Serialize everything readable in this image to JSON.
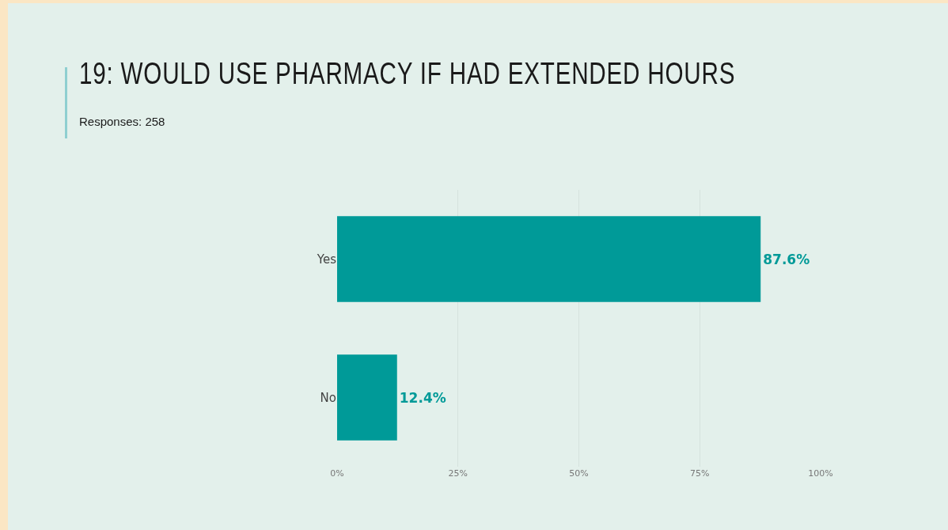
{
  "chart_data": {
    "type": "bar",
    "orientation": "horizontal",
    "title": "19: WOULD USE PHARMACY IF HAD EXTENDED HOURS",
    "subtitle": "Responses: 258",
    "categories": [
      "Yes",
      "No"
    ],
    "values": [
      87.6,
      12.4
    ],
    "value_labels": [
      "87.6%",
      "12.4%"
    ],
    "color": "#009a98",
    "xlim": [
      0,
      100
    ],
    "xticks": [
      {
        "value": 0,
        "label": "0%"
      },
      {
        "value": 25,
        "label": "25%"
      },
      {
        "value": 50,
        "label": "50%"
      },
      {
        "value": 75,
        "label": "75%"
      },
      {
        "value": 100,
        "label": "100%"
      }
    ],
    "grid": "x"
  }
}
